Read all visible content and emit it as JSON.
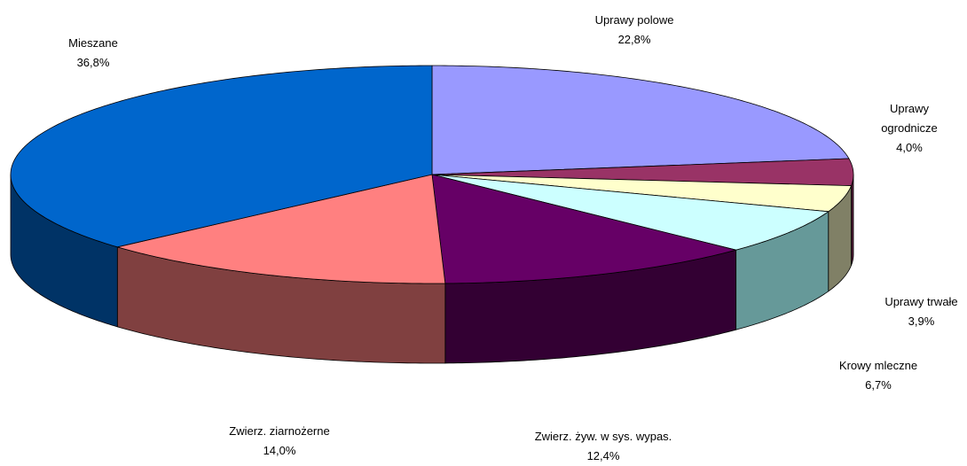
{
  "chart_data": {
    "type": "pie3d",
    "categories": [
      "Uprawy polowe",
      "Uprawy ogrodnicze",
      "Uprawy trwałe",
      "Krowy mleczne",
      "Zwierz. żyw. w sys. wypas.",
      "Zwierz. ziarnożerne",
      "Mieszane"
    ],
    "values": [
      22.8,
      4.0,
      3.9,
      6.7,
      12.4,
      14.0,
      36.8
    ],
    "value_labels": [
      "22,8%",
      "4,0%",
      "3,9%",
      "6,7%",
      "12,4%",
      "14,0%",
      "36,8%"
    ],
    "colors": [
      "#9999ff",
      "#993366",
      "#ffffcc",
      "#ccffff",
      "#660066",
      "#ff8080",
      "#0066cc"
    ],
    "side_colors": [
      "#4d4d80",
      "#4d1933",
      "#808066",
      "#669999",
      "#330033",
      "#804040",
      "#003366"
    ]
  }
}
